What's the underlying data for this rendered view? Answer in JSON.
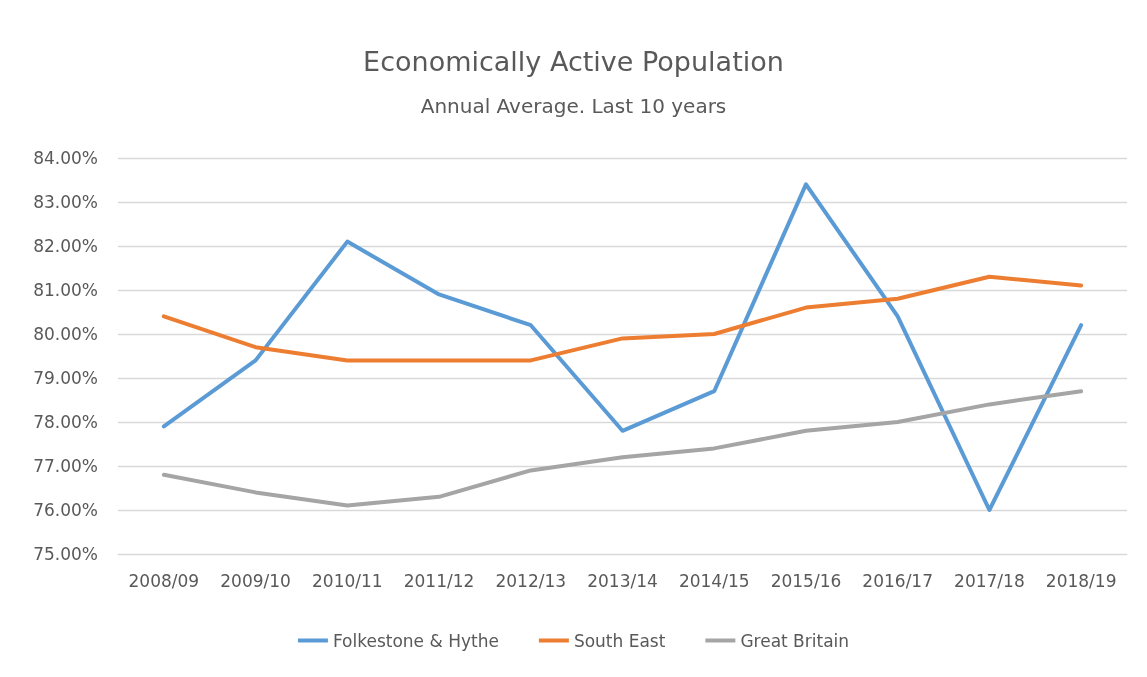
{
  "chart_data": {
    "type": "line",
    "title": "Economically Active Population",
    "subtitle": "Annual Average. Last 10 years",
    "categories": [
      "2008/09",
      "2009/10",
      "2010/11",
      "2011/12",
      "2012/13",
      "2013/14",
      "2014/15",
      "2015/16",
      "2016/17",
      "2017/18",
      "2018/19"
    ],
    "series": [
      {
        "name": "Folkestone & Hythe",
        "color": "#5b9bd5",
        "values": [
          77.9,
          79.4,
          82.1,
          80.9,
          80.2,
          77.8,
          78.7,
          83.4,
          80.4,
          76.0,
          80.2
        ]
      },
      {
        "name": "South East",
        "color": "#ed7d31",
        "values": [
          80.4,
          79.7,
          79.4,
          79.4,
          79.4,
          79.9,
          80.0,
          80.6,
          80.8,
          81.3,
          81.1
        ]
      },
      {
        "name": "Great Britain",
        "color": "#a5a5a5",
        "values": [
          76.8,
          76.4,
          76.1,
          76.3,
          76.9,
          77.2,
          77.4,
          77.8,
          78.0,
          78.4,
          78.7
        ]
      }
    ],
    "ylim": [
      75,
      84
    ],
    "yticks": [
      {
        "value": 75,
        "label": "75.00%"
      },
      {
        "value": 76,
        "label": "76.00%"
      },
      {
        "value": 77,
        "label": "77.00%"
      },
      {
        "value": 78,
        "label": "78.00%"
      },
      {
        "value": 79,
        "label": "79.00%"
      },
      {
        "value": 80,
        "label": "80.00%"
      },
      {
        "value": 81,
        "label": "81.00%"
      },
      {
        "value": 82,
        "label": "82.00%"
      },
      {
        "value": 83,
        "label": "83.00%"
      },
      {
        "value": 84,
        "label": "84.00%"
      }
    ],
    "grid": "y",
    "legend": "bottom",
    "marker": "none",
    "line_style": "solid"
  }
}
